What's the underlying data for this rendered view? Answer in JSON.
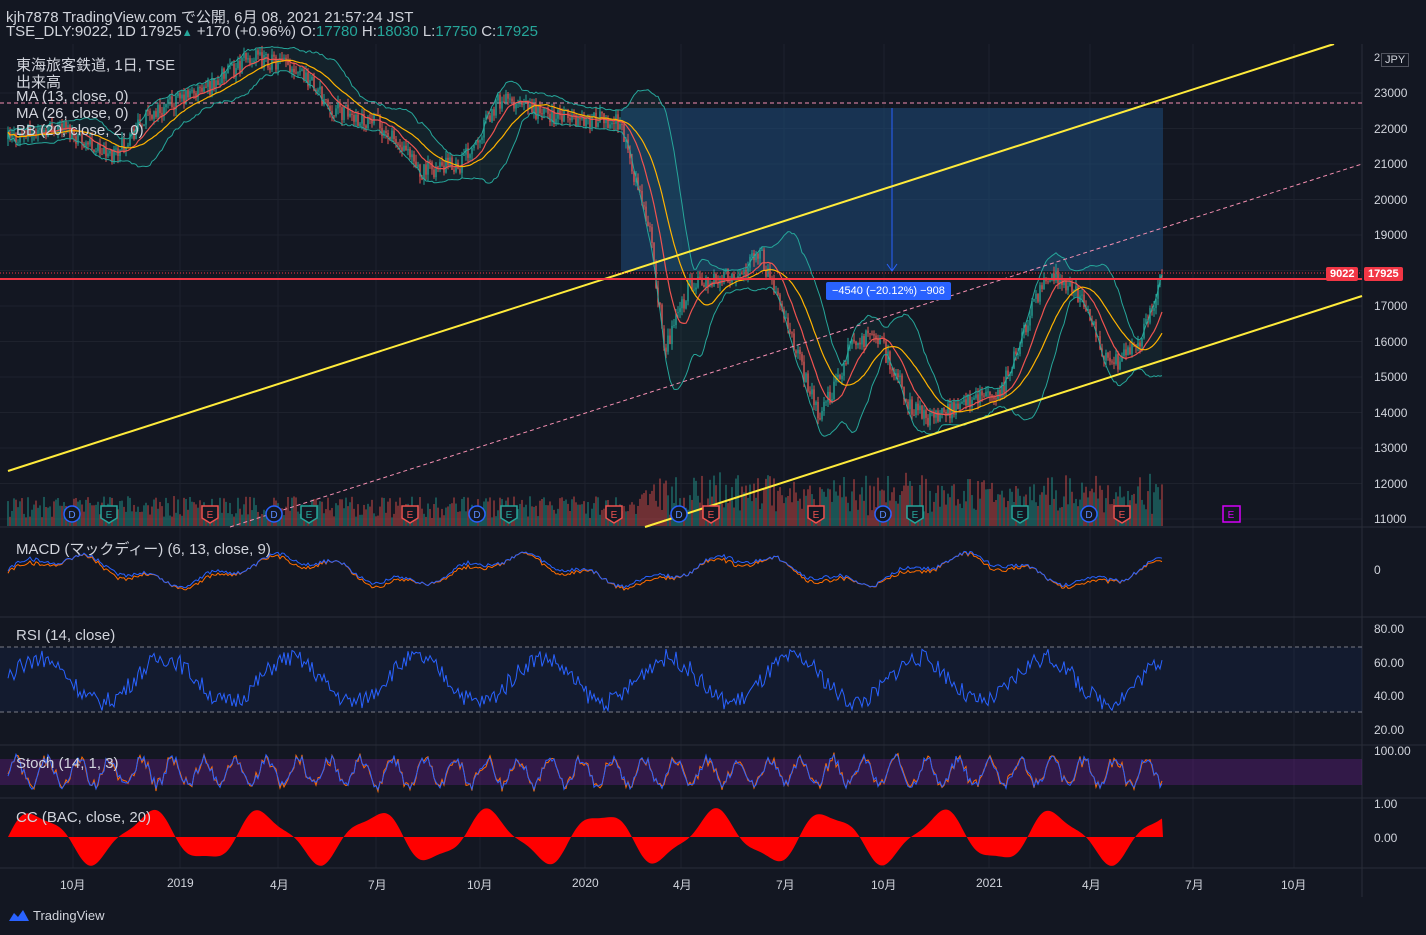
{
  "header": {
    "publisher": "kjh7878 TradingView.com で公開, 6月 08, 2021 21:57:24 JST",
    "symbol": "TSE_DLY:9022, 1D",
    "last_price": "17925",
    "change_arrow": "▲",
    "change": "+170 (+0.96%)",
    "o_label": "O:",
    "o_value": "17780",
    "h_label": "H:",
    "h_value": "18030",
    "l_label": "L:",
    "l_value": "17750",
    "c_label": "C:",
    "c_value": "17925"
  },
  "legend": {
    "name": "東海旅客鉄道, 1日, TSE",
    "volume": "出来高",
    "ma13": "MA (13, close, 0)",
    "ma26": "MA (26, close, 0)",
    "bb": "BB (20, close, 2, 0)"
  },
  "currency": "JPY",
  "price_axis": [
    "23000",
    "22000",
    "21000",
    "20000",
    "19000",
    "17000",
    "16000",
    "15000",
    "14000",
    "13000",
    "12000",
    "11000"
  ],
  "price_axis_top": "2",
  "price_tag": {
    "symbol": "9022",
    "price": "17925"
  },
  "measure_label": "−4540 (−20.12%) −908",
  "indicators": {
    "macd": "MACD (マックディー) (6, 13, close, 9)",
    "macd_axis": "0",
    "rsi": "RSI (14, close)",
    "rsi_axis": [
      "80.00",
      "60.00",
      "40.00",
      "20.00"
    ],
    "stoch": "Stoch (14, 1, 3)",
    "stoch_axis": "100.00",
    "cc": "CC (BAC, close, 20)",
    "cc_axis": [
      "1.00",
      "0.00"
    ]
  },
  "time_axis": [
    "10月",
    "2019",
    "4月",
    "7月",
    "10月",
    "2020",
    "4月",
    "7月",
    "10月",
    "2021",
    "4月",
    "7月",
    "10月"
  ],
  "event_markers": [
    "D",
    "E"
  ],
  "footer": {
    "brand": "TradingView"
  },
  "colors": {
    "background": "#131722",
    "up": "#26a69a",
    "down": "#ef5350",
    "channel": "#ffeb3b",
    "price_line": "#f23645",
    "measure_box": "#1e4a7a",
    "macd": "#2962ff",
    "signal": "#ff6d00",
    "cc_fill": "#ff0000"
  }
}
